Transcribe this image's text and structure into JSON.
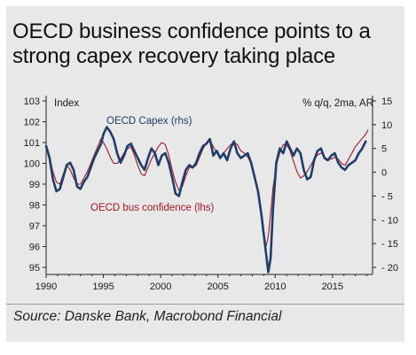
{
  "title_line1": "OECD business confidence points to a",
  "title_line2": "strong capex recovery taking place",
  "source": "Source: Danske Bank, Macrobond Financial",
  "chart_data": {
    "type": "line",
    "title": "OECD business confidence points to a strong capex recovery taking place",
    "left_axis_label": "Index",
    "right_axis_label": "% q/q, 2ma, AR",
    "xlim": [
      1990,
      2018.5
    ],
    "x_ticks": [
      1990,
      1995,
      2000,
      2005,
      2010,
      2015
    ],
    "y_left_lim": [
      95,
      103
    ],
    "y_left_ticks": [
      95,
      96,
      97,
      98,
      99,
      100,
      101,
      102,
      103
    ],
    "y_right_lim": [
      -20,
      15
    ],
    "y_right_ticks": [
      -20,
      -15,
      -10,
      -5,
      0,
      5,
      10,
      15
    ],
    "grid": false,
    "series": [
      {
        "name": "OECD Capex (rhs)",
        "axis": "right",
        "color": "#1f3d6b",
        "x": [
          1990.0,
          1990.3,
          1990.6,
          1990.9,
          1991.2,
          1991.5,
          1991.8,
          1992.1,
          1992.4,
          1992.7,
          1993.0,
          1993.3,
          1993.6,
          1993.9,
          1994.2,
          1994.5,
          1994.8,
          1995.0,
          1995.3,
          1995.6,
          1995.9,
          1996.2,
          1996.5,
          1996.8,
          1997.1,
          1997.4,
          1997.7,
          1998.0,
          1998.3,
          1998.6,
          1998.9,
          1999.2,
          1999.5,
          1999.8,
          2000.1,
          2000.4,
          2000.7,
          2001.0,
          2001.3,
          2001.6,
          2001.9,
          2002.2,
          2002.5,
          2002.8,
          2003.1,
          2003.4,
          2003.7,
          2004.0,
          2004.3,
          2004.6,
          2004.9,
          2005.2,
          2005.5,
          2005.8,
          2006.1,
          2006.4,
          2006.7,
          2007.0,
          2007.3,
          2007.6,
          2007.9,
          2008.2,
          2008.5,
          2008.8,
          2009.0,
          2009.2,
          2009.4,
          2009.6,
          2009.8,
          2010.1,
          2010.4,
          2010.7,
          2011.0,
          2011.3,
          2011.6,
          2011.9,
          2012.2,
          2012.5,
          2012.8,
          2013.1,
          2013.4,
          2013.7,
          2014.0,
          2014.3,
          2014.6,
          2014.9,
          2015.2,
          2015.5,
          2015.8,
          2016.1,
          2016.4,
          2016.7,
          2017.0,
          2017.3,
          2017.6,
          2017.9
        ],
        "values": [
          5.5,
          3.0,
          -1.5,
          -4.0,
          -3.5,
          -1.0,
          1.5,
          2.0,
          0.5,
          -3.0,
          -3.5,
          -2.0,
          -1.0,
          1.0,
          3.0,
          4.5,
          6.0,
          8.0,
          9.5,
          8.5,
          7.0,
          4.0,
          2.0,
          3.5,
          5.5,
          6.0,
          4.5,
          3.0,
          1.5,
          0.5,
          3.0,
          5.0,
          4.0,
          1.5,
          3.5,
          4.0,
          2.0,
          -1.0,
          -4.5,
          -5.0,
          -2.0,
          0.5,
          1.5,
          1.0,
          2.0,
          4.0,
          5.5,
          6.0,
          7.0,
          3.5,
          4.5,
          3.0,
          4.0,
          2.5,
          5.0,
          6.5,
          4.0,
          3.0,
          3.5,
          4.0,
          2.0,
          -1.0,
          -4.0,
          -9.0,
          -13.0,
          -17.0,
          -21.0,
          -18.0,
          -8.0,
          2.0,
          5.0,
          4.0,
          6.5,
          5.0,
          3.5,
          5.0,
          4.0,
          0.5,
          -1.5,
          -1.0,
          2.5,
          4.5,
          5.0,
          3.0,
          2.5,
          3.5,
          4.0,
          2.0,
          1.0,
          0.5,
          1.5,
          2.0,
          2.5,
          4.0,
          5.0,
          6.5
        ]
      },
      {
        "name": "OECD bus confidence (lhs)",
        "axis": "left",
        "color": "#a3172a",
        "x": [
          1990.0,
          1990.3,
          1990.6,
          1990.9,
          1991.2,
          1991.5,
          1991.8,
          1992.1,
          1992.4,
          1992.7,
          1993.0,
          1993.3,
          1993.6,
          1993.9,
          1994.2,
          1994.5,
          1994.8,
          1995.0,
          1995.3,
          1995.6,
          1995.9,
          1996.2,
          1996.5,
          1996.8,
          1997.1,
          1997.4,
          1997.7,
          1998.0,
          1998.3,
          1998.6,
          1998.9,
          1999.2,
          1999.5,
          1999.8,
          2000.1,
          2000.4,
          2000.7,
          2001.0,
          2001.3,
          2001.6,
          2001.9,
          2002.2,
          2002.5,
          2002.8,
          2003.1,
          2003.4,
          2003.7,
          2004.0,
          2004.3,
          2004.6,
          2004.9,
          2005.2,
          2005.5,
          2005.8,
          2006.1,
          2006.4,
          2006.7,
          2007.0,
          2007.3,
          2007.6,
          2007.9,
          2008.2,
          2008.5,
          2008.8,
          2009.0,
          2009.2,
          2009.4,
          2009.6,
          2009.8,
          2010.1,
          2010.4,
          2010.7,
          2011.0,
          2011.3,
          2011.6,
          2011.9,
          2012.2,
          2012.5,
          2012.8,
          2013.1,
          2013.4,
          2013.7,
          2014.0,
          2014.3,
          2014.6,
          2014.9,
          2015.2,
          2015.5,
          2015.8,
          2016.1,
          2016.4,
          2016.7,
          2017.0,
          2017.3,
          2017.6,
          2017.9,
          2018.1
        ],
        "values": [
          100.7,
          100.3,
          99.6,
          99.1,
          99.0,
          99.5,
          99.9,
          99.7,
          99.3,
          99.0,
          99.0,
          99.3,
          99.6,
          100.0,
          100.4,
          100.8,
          101.2,
          101.0,
          100.7,
          100.3,
          100.0,
          100.0,
          100.2,
          100.5,
          100.7,
          100.8,
          100.4,
          99.9,
          99.5,
          99.4,
          99.8,
          100.2,
          100.5,
          100.8,
          101.0,
          100.9,
          100.4,
          99.7,
          99.1,
          98.7,
          98.9,
          99.4,
          99.8,
          99.8,
          99.9,
          100.3,
          100.7,
          101.0,
          101.1,
          100.8,
          100.5,
          100.3,
          100.5,
          100.7,
          100.9,
          101.0,
          100.9,
          100.6,
          100.5,
          100.3,
          100.0,
          99.4,
          98.6,
          97.6,
          96.6,
          96.0,
          96.5,
          97.6,
          98.8,
          99.9,
          100.5,
          100.9,
          100.9,
          100.6,
          100.1,
          99.6,
          99.3,
          99.4,
          99.6,
          99.9,
          100.2,
          100.4,
          100.5,
          100.3,
          100.2,
          100.2,
          100.3,
          100.2,
          100.0,
          99.9,
          100.2,
          100.5,
          100.8,
          101.0,
          101.2,
          101.4,
          101.6
        ]
      }
    ]
  }
}
